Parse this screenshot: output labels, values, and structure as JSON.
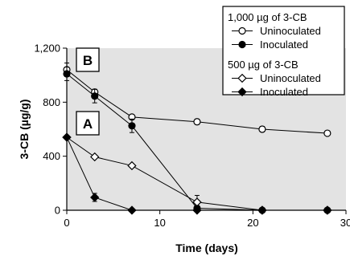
{
  "chart_data": {
    "type": "line",
    "xlabel": "Time (days)",
    "ylabel": "3-CB (µg/g)",
    "xlim": [
      0,
      30
    ],
    "ylim": [
      0,
      1200
    ],
    "xticks": [
      "0",
      "10",
      "20",
      "30"
    ],
    "yticks": [
      "0",
      "400",
      "800",
      "1,200"
    ],
    "background": "#e3e3e3",
    "grid": false,
    "panel_labels": [
      "B",
      "A"
    ],
    "legend": {
      "placement": "top-right",
      "groups": [
        {
          "title": "1,000 µg of 3-CB",
          "entries": [
            "Uninoculated",
            "Inoculated"
          ]
        },
        {
          "title": "500 µg of 3-CB",
          "entries": [
            "Uninoculated",
            "Inoculated"
          ]
        }
      ]
    },
    "series": [
      {
        "name": "Uninoculated",
        "group": "1,000 µg of 3-CB",
        "marker": "circle-open",
        "x": [
          0,
          3,
          7,
          14,
          21,
          28
        ],
        "y": [
          1040,
          875,
          690,
          655,
          600,
          570
        ],
        "err": [
          50,
          20,
          10,
          20,
          20,
          10
        ]
      },
      {
        "name": "Inoculated",
        "group": "1,000 µg of 3-CB",
        "marker": "circle-filled",
        "x": [
          0,
          3,
          7,
          14,
          21,
          28
        ],
        "y": [
          1010,
          845,
          625,
          15,
          0,
          0
        ],
        "err": [
          50,
          50,
          50,
          0,
          0,
          0
        ]
      },
      {
        "name": "Uninoculated",
        "group": "500 µg of 3-CB",
        "marker": "diamond-open",
        "x": [
          0,
          3,
          7,
          14,
          21,
          28
        ],
        "y": [
          540,
          395,
          330,
          60,
          0,
          0
        ],
        "err": [
          0,
          0,
          0,
          50,
          0,
          0
        ]
      },
      {
        "name": "Inoculated",
        "group": "500 µg of 3-CB",
        "marker": "diamond-filled",
        "x": [
          0,
          3,
          7,
          14,
          21,
          28
        ],
        "y": [
          540,
          95,
          0,
          0,
          0,
          0
        ],
        "err": [
          0,
          30,
          0,
          0,
          0,
          0
        ]
      }
    ]
  }
}
